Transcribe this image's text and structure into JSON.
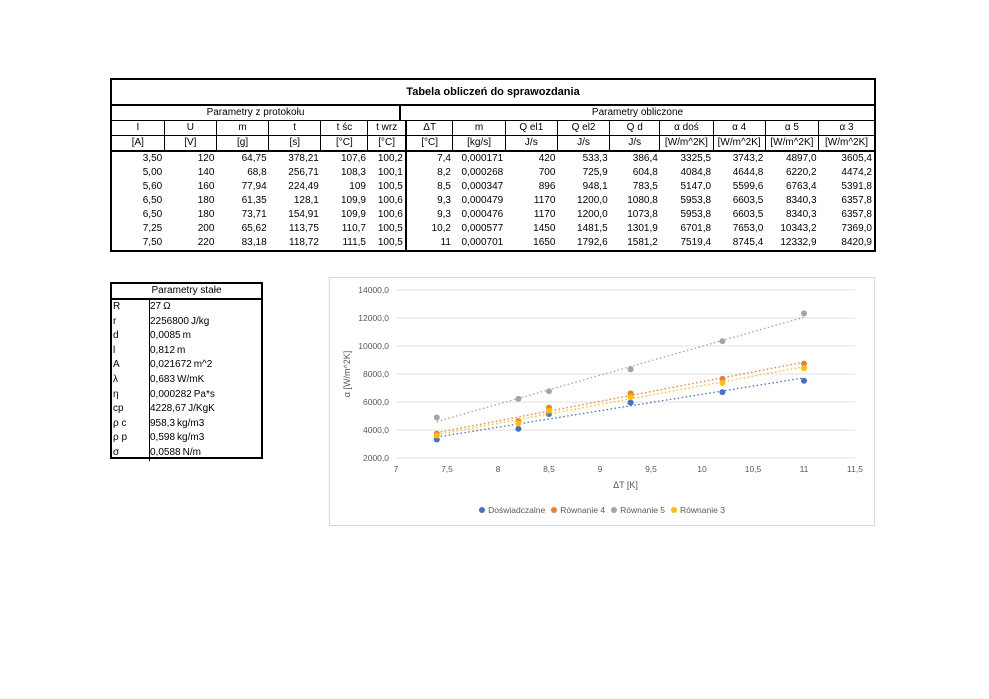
{
  "main_table": {
    "title": "Tabela obliczeń do sprawozdania",
    "group_left": "Parametry z protokołu",
    "group_right": "Parametry obliczone",
    "headers": [
      "I",
      "U",
      "m",
      "t",
      "t śc",
      "t wrz",
      "ΔT",
      "m",
      "Q el1",
      "Q el2",
      "Q d",
      "α doś",
      "α 4",
      "α 5",
      "α 3"
    ],
    "units": [
      "[A]",
      "[V]",
      "[g]",
      "[s]",
      "[°C]",
      "[°C]",
      "[°C]",
      "[kg/s]",
      "J/s",
      "J/s",
      "J/s",
      "[W/m^2K]",
      "[W/m^2K]",
      "[W/m^2K]",
      "[W/m^2K]"
    ],
    "rows": [
      [
        "3,50",
        "120",
        "64,75",
        "378,21",
        "107,6",
        "100,2",
        "7,4",
        "0,000171",
        "420",
        "533,3",
        "386,4",
        "3325,5",
        "3743,2",
        "4897,0",
        "3605,4"
      ],
      [
        "5,00",
        "140",
        "68,8",
        "256,71",
        "108,3",
        "100,1",
        "8,2",
        "0,000268",
        "700",
        "725,9",
        "604,8",
        "4084,8",
        "4644,8",
        "6220,2",
        "4474,2"
      ],
      [
        "5,60",
        "160",
        "77,94",
        "224,49",
        "109",
        "100,5",
        "8,5",
        "0,000347",
        "896",
        "948,1",
        "783,5",
        "5147,0",
        "5599,6",
        "6763,4",
        "5391,8"
      ],
      [
        "6,50",
        "180",
        "61,35",
        "128,1",
        "109,9",
        "100,6",
        "9,3",
        "0,000479",
        "1170",
        "1200,0",
        "1080,8",
        "5953,8",
        "6603,5",
        "8340,3",
        "6357,8"
      ],
      [
        "6,50",
        "180",
        "73,71",
        "154,91",
        "109,9",
        "100,6",
        "9,3",
        "0,000476",
        "1170",
        "1200,0",
        "1073,8",
        "5953,8",
        "6603,5",
        "8340,3",
        "6357,8"
      ],
      [
        "7,25",
        "200",
        "65,62",
        "113,75",
        "110,7",
        "100,5",
        "10,2",
        "0,000577",
        "1450",
        "1481,5",
        "1301,9",
        "6701,8",
        "7653,0",
        "10343,2",
        "7369,0"
      ],
      [
        "7,50",
        "220",
        "83,18",
        "118,72",
        "111,5",
        "100,5",
        "11",
        "0,000701",
        "1650",
        "1792,6",
        "1581,2",
        "7519,4",
        "8745,4",
        "12332,9",
        "8420,9"
      ]
    ]
  },
  "constants": {
    "title": "Parametry stałe",
    "rows": [
      {
        "name": "R",
        "value": "27",
        "unit": "Ω"
      },
      {
        "name": "r",
        "value": "2256800",
        "unit": "J/kg"
      },
      {
        "name": "d",
        "value": "0,0085",
        "unit": "m"
      },
      {
        "name": "l",
        "value": "0,812",
        "unit": "m"
      },
      {
        "name": "A",
        "value": "0,021672",
        "unit": "m^2"
      },
      {
        "name": "λ",
        "value": "0,683",
        "unit": "W/mK"
      },
      {
        "name": "η",
        "value": "0,000282",
        "unit": "Pa*s"
      },
      {
        "name": "cp",
        "value": "4228,67",
        "unit": "J/KgK"
      },
      {
        "name": "ρ c",
        "value": "958,3",
        "unit": "kg/m3"
      },
      {
        "name": "ρ p",
        "value": "0,598",
        "unit": "kg/m3"
      },
      {
        "name": "σ",
        "value": "0,0588",
        "unit": "N/m"
      }
    ]
  },
  "chart_data": {
    "type": "scatter",
    "title": "",
    "xlabel": "ΔT [K]",
    "ylabel": "α [W/m^2K]",
    "xlim": [
      7,
      11.5
    ],
    "ylim": [
      2000,
      14000
    ],
    "xticks": [
      "7",
      "7,5",
      "8",
      "8,5",
      "9",
      "9,5",
      "10",
      "10,5",
      "11",
      "11,5"
    ],
    "yticks": [
      "2000,0",
      "4000,0",
      "6000,0",
      "8000,0",
      "10000,0",
      "12000,0",
      "14000,0"
    ],
    "grid": "horizontal",
    "trendlines": "linear, dotted",
    "legend_position": "bottom",
    "x": [
      7.4,
      8.2,
      8.5,
      9.3,
      9.3,
      10.2,
      11
    ],
    "series": [
      {
        "name": "Doświadczalne",
        "color": "#4472c4",
        "values": [
          3325.5,
          4084.8,
          5147.0,
          5953.8,
          5953.8,
          6701.8,
          7519.4
        ]
      },
      {
        "name": "Równanie 4",
        "color": "#ed7d31",
        "values": [
          3743.2,
          4644.8,
          5599.6,
          6603.5,
          6603.5,
          7653.0,
          8745.4
        ]
      },
      {
        "name": "Równanie 5",
        "color": "#a5a5a5",
        "values": [
          4897.0,
          6220.2,
          6763.4,
          8340.3,
          8340.3,
          10343.2,
          12332.9
        ]
      },
      {
        "name": "Równanie 3",
        "color": "#ffc000",
        "values": [
          3605.4,
          4474.2,
          5391.8,
          6357.8,
          6357.8,
          7369.0,
          8420.9
        ]
      }
    ]
  }
}
